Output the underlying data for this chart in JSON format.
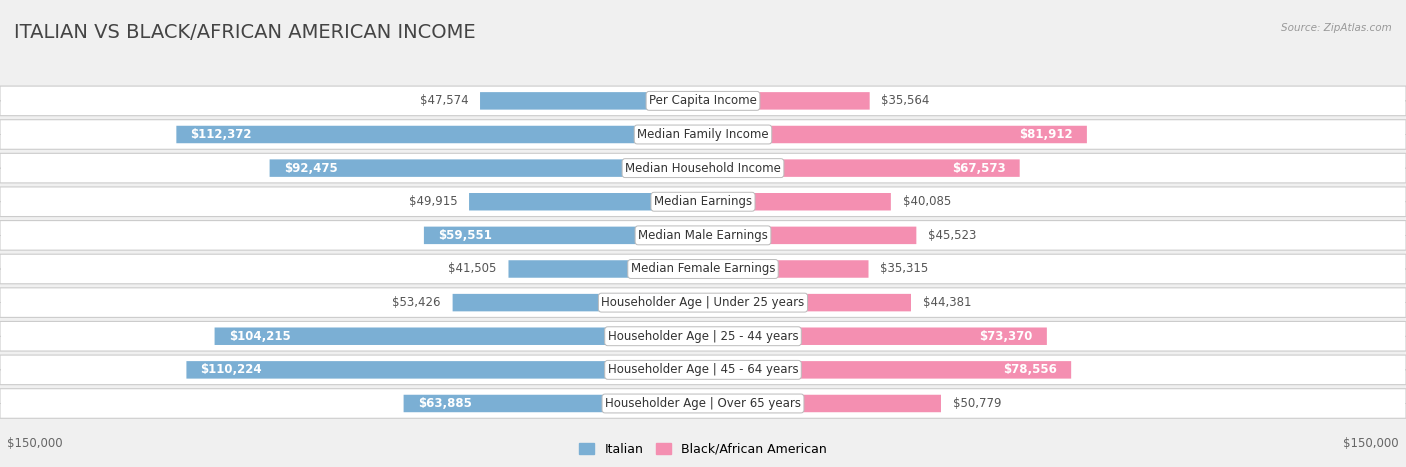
{
  "title": "ITALIAN VS BLACK/AFRICAN AMERICAN INCOME",
  "source": "Source: ZipAtlas.com",
  "categories": [
    "Per Capita Income",
    "Median Family Income",
    "Median Household Income",
    "Median Earnings",
    "Median Male Earnings",
    "Median Female Earnings",
    "Householder Age | Under 25 years",
    "Householder Age | 25 - 44 years",
    "Householder Age | 45 - 64 years",
    "Householder Age | Over 65 years"
  ],
  "italian_values": [
    47574,
    112372,
    92475,
    49915,
    59551,
    41505,
    53426,
    104215,
    110224,
    63885
  ],
  "black_values": [
    35564,
    81912,
    67573,
    40085,
    45523,
    35315,
    44381,
    73370,
    78556,
    50779
  ],
  "italian_labels": [
    "$47,574",
    "$112,372",
    "$92,475",
    "$49,915",
    "$59,551",
    "$41,505",
    "$53,426",
    "$104,215",
    "$110,224",
    "$63,885"
  ],
  "black_labels": [
    "$35,564",
    "$81,912",
    "$67,573",
    "$40,085",
    "$45,523",
    "$35,315",
    "$44,381",
    "$73,370",
    "$78,556",
    "$50,779"
  ],
  "italian_color": "#7bafd4",
  "black_color": "#f48fb1",
  "max_value": 150000,
  "x_label_left": "$150,000",
  "x_label_right": "$150,000",
  "legend_italian": "Italian",
  "legend_black": "Black/African American",
  "background_color": "#f0f0f0",
  "row_bg_color": "#ffffff",
  "row_alt_color": "#e8e8e8",
  "title_fontsize": 14,
  "label_fontsize": 8.5,
  "category_fontsize": 8.5,
  "inside_label_threshold": 55000
}
